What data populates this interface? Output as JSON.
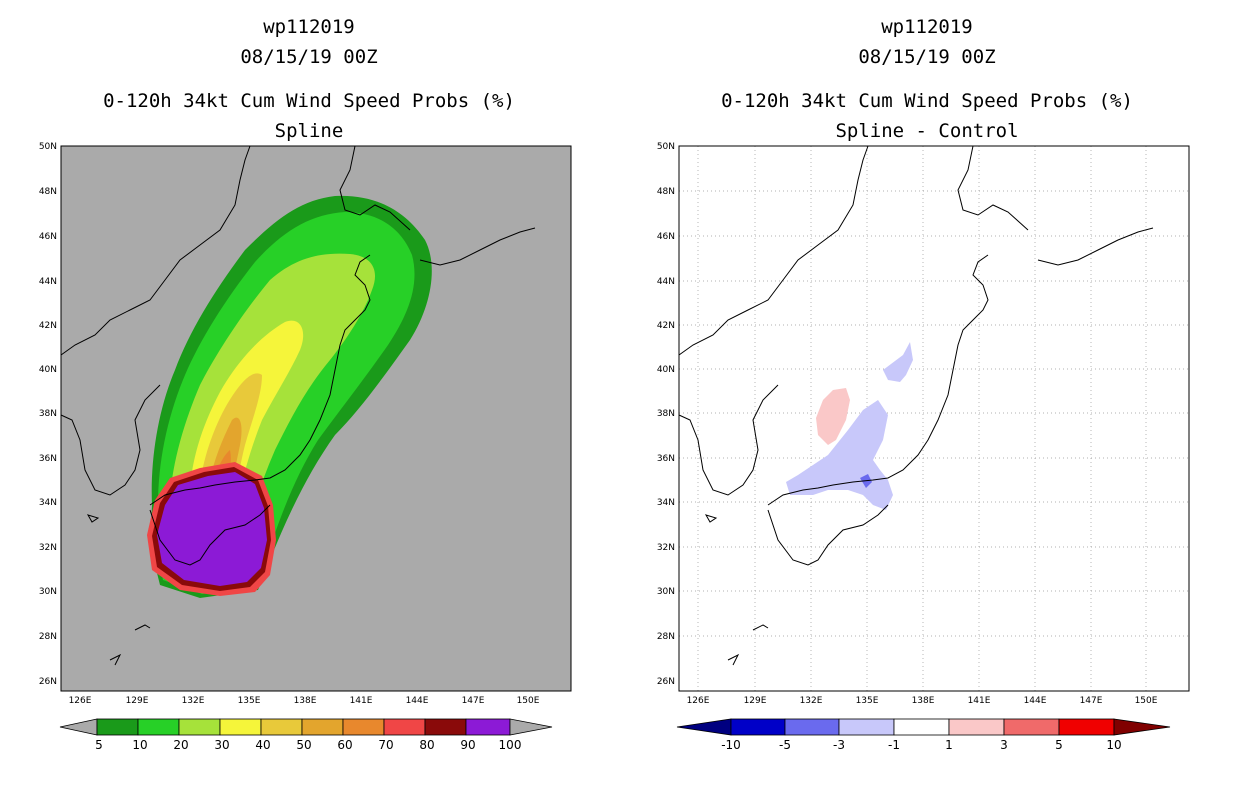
{
  "left": {
    "title_line1": "wp112019",
    "title_line2": "08/15/19 00Z",
    "title_line3": "0-120h 34kt Cum Wind Speed Probs (%)",
    "title_line4": "Spline",
    "colorbar_labels": [
      "5",
      "10",
      "20",
      "30",
      "40",
      "50",
      "60",
      "70",
      "80",
      "90",
      "100"
    ],
    "colorbar_colors": [
      "#1a9a1a",
      "#27d027",
      "#a6e23a",
      "#f5f53a",
      "#e8c93a",
      "#e3a52d",
      "#e8882d",
      "#f04646",
      "#8a0a0a",
      "#8c1ad6"
    ]
  },
  "right": {
    "title_line1": "wp112019",
    "title_line2": "08/15/19 00Z",
    "title_line3": "0-120h 34kt Cum Wind Speed Probs (%)",
    "title_line4": "Spline - Control",
    "colorbar_labels": [
      "-10",
      "-5",
      "-3",
      "-1",
      "1",
      "3",
      "5",
      "10"
    ],
    "colorbar_colors": [
      "#0000c8",
      "#6a6aee",
      "#c8c8fa",
      "#ffffff",
      "#fac8c8",
      "#f06a6a",
      "#f00000"
    ]
  },
  "axes": {
    "lat_labels": [
      "50N",
      "48N",
      "46N",
      "44N",
      "42N",
      "40N",
      "38N",
      "36N",
      "34N",
      "32N",
      "30N",
      "28N",
      "26N"
    ],
    "lon_labels": [
      "126E",
      "129E",
      "132E",
      "135E",
      "138E",
      "141E",
      "144E",
      "147E",
      "150E"
    ]
  },
  "colors": {
    "land_bg": "#aaaaaa",
    "coast": "#000000"
  }
}
